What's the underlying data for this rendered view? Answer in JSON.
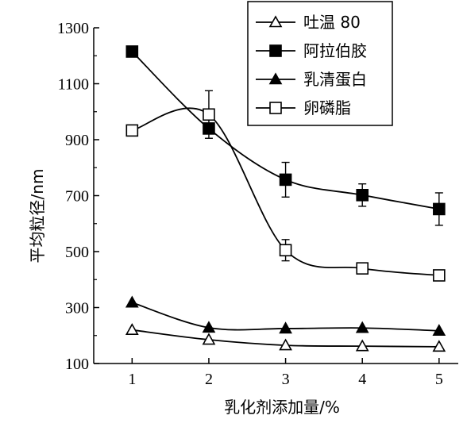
{
  "chart_data": {
    "type": "line",
    "xlabel": "乳化剂添加量/%",
    "ylabel": "平均粒径/nm",
    "x": [
      1,
      2,
      3,
      4,
      5
    ],
    "x_ticks": [
      "1",
      "2",
      "3",
      "4",
      "5"
    ],
    "xlim": [
      0.5,
      5.25
    ],
    "y_ticks": [
      "100",
      "300",
      "500",
      "700",
      "900",
      "1100",
      "1300"
    ],
    "ylim": [
      100,
      1300
    ],
    "grid": false,
    "legend_position": "top-right",
    "series": [
      {
        "name": "吐温 80",
        "marker": "open-triangle",
        "values": [
          220,
          185,
          165,
          162,
          160
        ],
        "errors": [
          0,
          0,
          0,
          0,
          0
        ]
      },
      {
        "name": "阿拉伯胶",
        "marker": "filled-square",
        "values": [
          1215,
          940,
          757,
          702,
          652
        ],
        "errors": [
          0,
          0,
          62,
          40,
          58
        ]
      },
      {
        "name": "乳清蛋白",
        "marker": "filled-triangle",
        "values": [
          318,
          228,
          225,
          227,
          217
        ],
        "errors": [
          0,
          0,
          0,
          0,
          0
        ]
      },
      {
        "name": "卵磷脂",
        "marker": "open-square",
        "values": [
          933,
          990,
          505,
          440,
          415
        ],
        "errors": [
          0,
          85,
          38,
          0,
          0
        ]
      }
    ]
  }
}
